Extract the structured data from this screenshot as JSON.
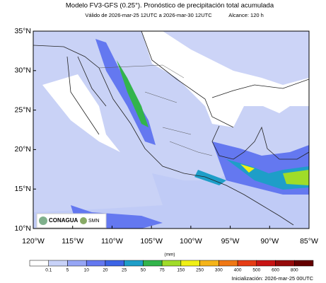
{
  "header": {
    "title": "Modelo FV3-GFS (0.25°). Pronóstico de precipitación total acumulada",
    "valid": "Válido de 2026-mar-25 12UTC a 2026-mar-30 12UTC",
    "range": "Alcance: 120 h"
  },
  "map": {
    "lat_labels": [
      "35°N",
      "30°N",
      "25°N",
      "20°N",
      "15°N",
      "10°N"
    ],
    "lon_labels": [
      "120°W",
      "115°W",
      "110°W",
      "105°W",
      "100°W",
      "95°W",
      "90°W",
      "85°W"
    ],
    "logos": [
      "CONAGUA",
      "SMN"
    ]
  },
  "colorbar": {
    "unit": "(mm)",
    "levels": [
      "0.1",
      "5",
      "10",
      "20",
      "25",
      "50",
      "75",
      "150",
      "250",
      "300",
      "400",
      "500",
      "600",
      "800"
    ],
    "colors": [
      "#ffffff",
      "#c8d2f8",
      "#96a5f5",
      "#6478f0",
      "#3c64e6",
      "#1e9ec8",
      "#32b44b",
      "#a0dc28",
      "#f0f014",
      "#f5b419",
      "#f07814",
      "#e63c14",
      "#c81414",
      "#960a0a",
      "#640000"
    ]
  },
  "footer": {
    "init": "Inicialización: 2026-mar-25 00UTC"
  }
}
